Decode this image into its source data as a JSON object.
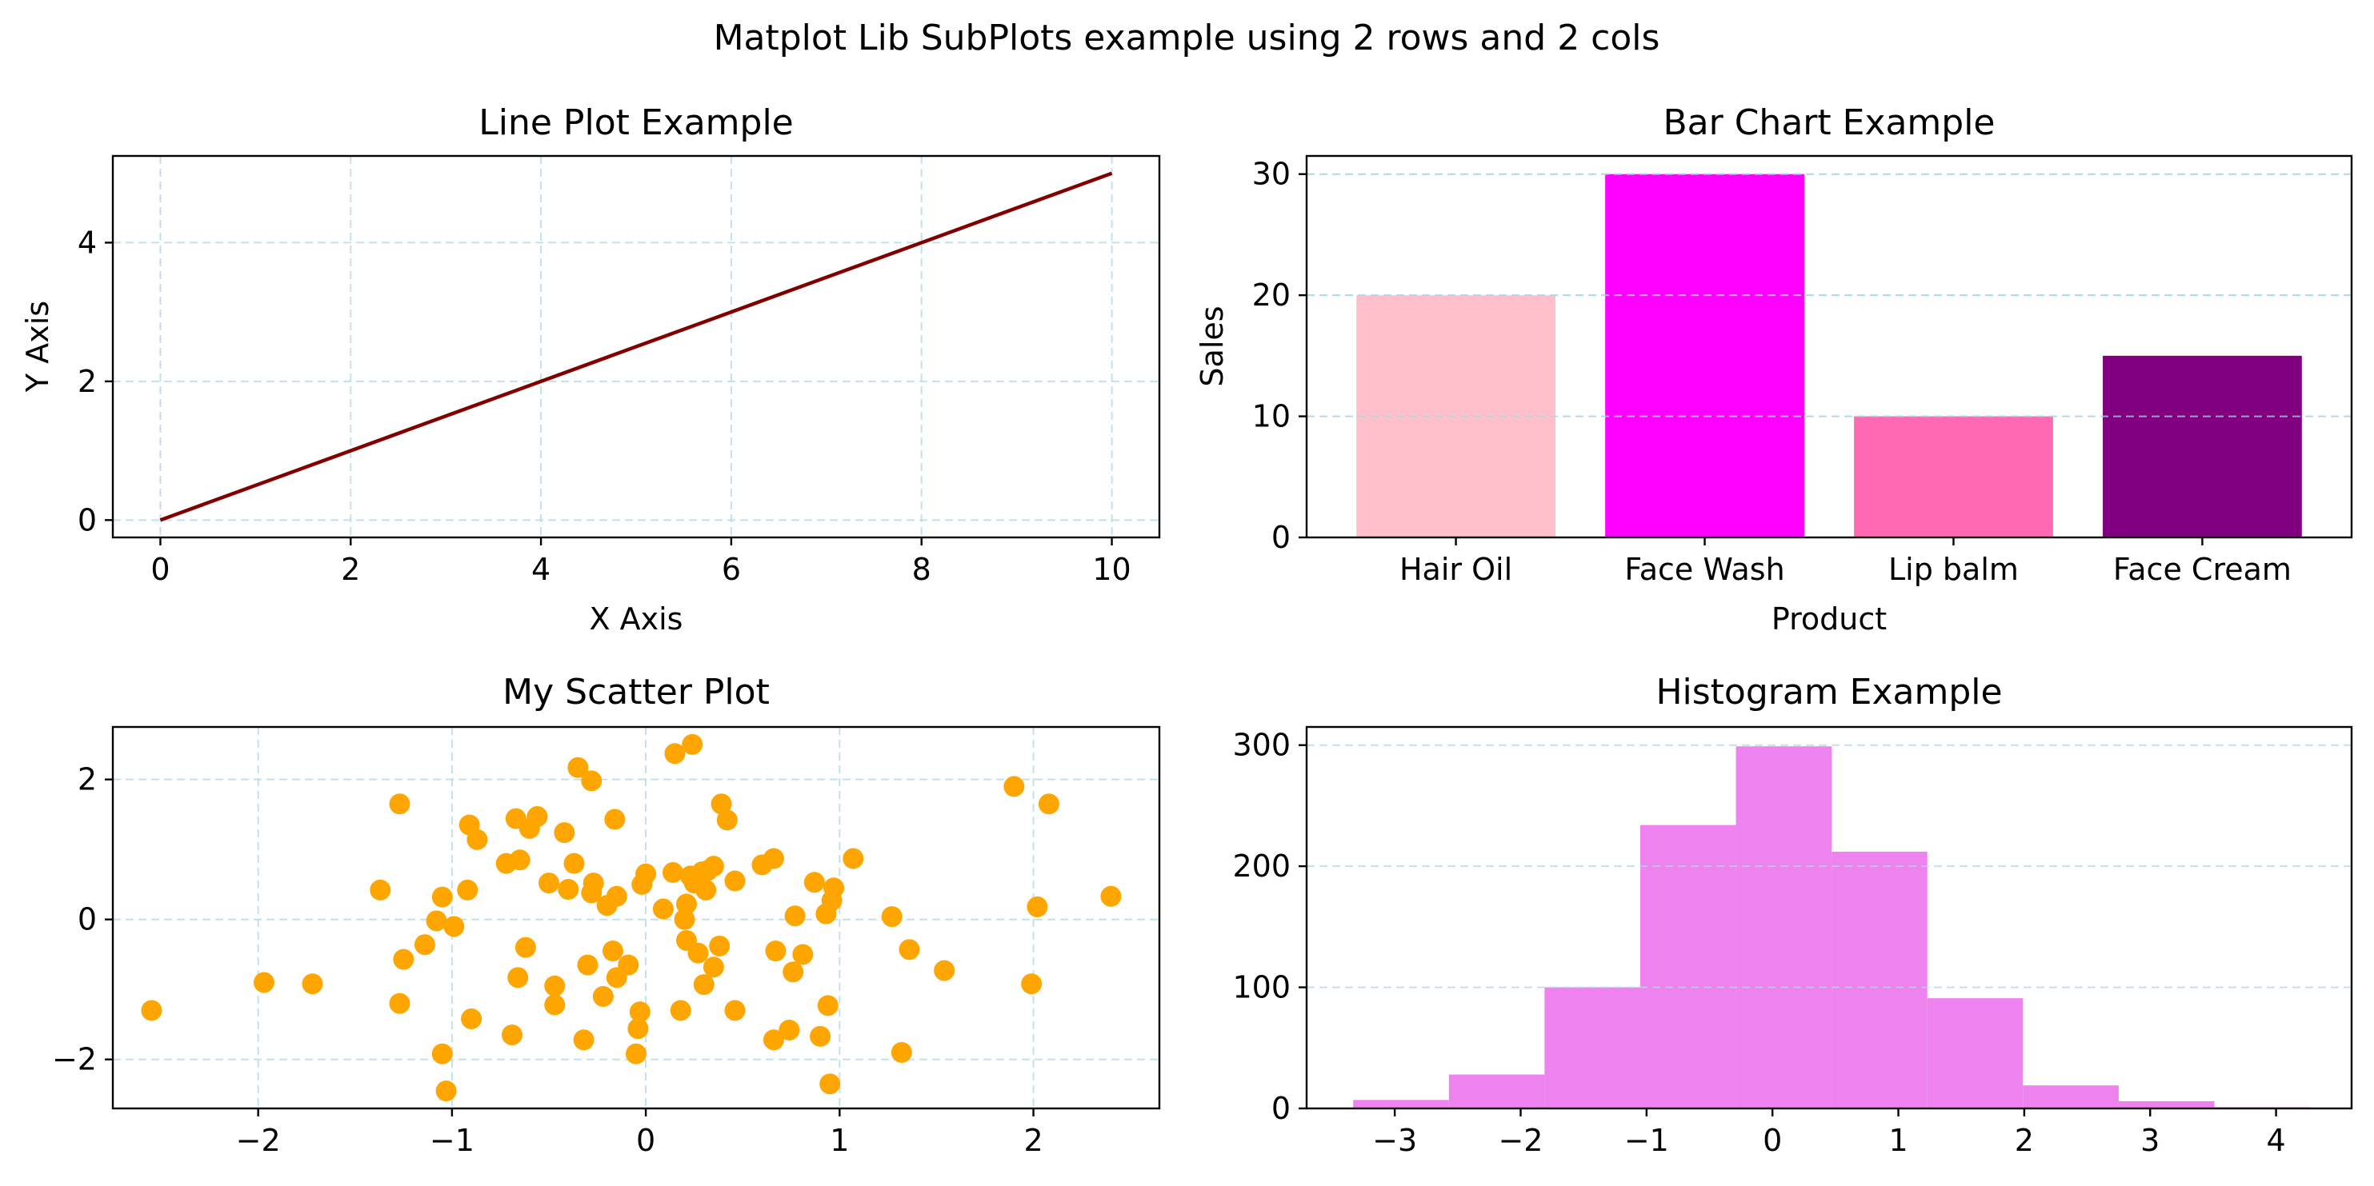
{
  "figure": {
    "suptitle": "Matplot Lib SubPlots example using 2 rows and 2 cols"
  },
  "colors": {
    "line": "#800000",
    "grid": "#add8e6",
    "scatter": "#ffa500",
    "hist": "#ee82ee",
    "bars": [
      "#ffc0cb",
      "#ff00ff",
      "#ff69b4",
      "#800080"
    ]
  },
  "chart_data": [
    {
      "type": "line",
      "title": "Line Plot Example",
      "xlabel": "X Axis",
      "ylabel": "Y Axis",
      "x": [
        0,
        10
      ],
      "y": [
        0,
        5
      ],
      "xlim": [
        -0.5,
        10.5
      ],
      "ylim": [
        -0.25,
        5.25
      ],
      "xticks": [
        0,
        2,
        4,
        6,
        8,
        10
      ],
      "yticks": [
        0,
        2,
        4
      ],
      "grid": true
    },
    {
      "type": "bar",
      "title": "Bar Chart Example",
      "xlabel": "Product",
      "ylabel": "Sales",
      "categories": [
        "Hair Oil",
        "Face Wash",
        "Lip balm",
        "Face Cream"
      ],
      "values": [
        20,
        30,
        10,
        15
      ],
      "ylim": [
        0,
        31.5
      ],
      "yticks": [
        0,
        10,
        20,
        30
      ],
      "grid": true
    },
    {
      "type": "scatter",
      "title": "My Scatter Plot",
      "xlabel": "",
      "ylabel": "",
      "xlim": [
        -2.75,
        2.65
      ],
      "ylim": [
        -2.7,
        2.75
      ],
      "xticks": [
        -2,
        -1,
        0,
        1,
        2
      ],
      "yticks": [
        -2,
        0,
        2
      ],
      "grid": true,
      "points": [
        [
          -2.55,
          -1.3
        ],
        [
          -1.97,
          -0.9
        ],
        [
          -1.72,
          -0.92
        ],
        [
          -1.37,
          0.42
        ],
        [
          -1.27,
          1.65
        ],
        [
          -1.27,
          -1.2
        ],
        [
          -1.25,
          -0.57
        ],
        [
          -1.14,
          -0.36
        ],
        [
          -1.08,
          -0.02
        ],
        [
          -1.05,
          0.32
        ],
        [
          -1.05,
          -1.92
        ],
        [
          -1.03,
          -2.45
        ],
        [
          -0.99,
          -0.1
        ],
        [
          -0.92,
          0.42
        ],
        [
          -0.91,
          1.35
        ],
        [
          -0.9,
          -1.42
        ],
        [
          -0.87,
          1.14
        ],
        [
          -0.72,
          0.8
        ],
        [
          -0.69,
          -1.65
        ],
        [
          -0.67,
          1.44
        ],
        [
          -0.66,
          -0.83
        ],
        [
          -0.65,
          0.85
        ],
        [
          -0.62,
          -0.4
        ],
        [
          -0.6,
          1.3
        ],
        [
          -0.56,
          1.47
        ],
        [
          -0.5,
          0.52
        ],
        [
          -0.47,
          -0.95
        ],
        [
          -0.47,
          -1.22
        ],
        [
          -0.42,
          1.24
        ],
        [
          -0.4,
          0.43
        ],
        [
          -0.37,
          0.8
        ],
        [
          -0.35,
          2.17
        ],
        [
          -0.32,
          -1.72
        ],
        [
          -0.3,
          -0.65
        ],
        [
          -0.28,
          1.98
        ],
        [
          -0.28,
          0.38
        ],
        [
          -0.27,
          0.52
        ],
        [
          -0.22,
          -1.1
        ],
        [
          -0.2,
          0.2
        ],
        [
          -0.17,
          -0.45
        ],
        [
          -0.16,
          1.43
        ],
        [
          -0.15,
          -0.83
        ],
        [
          -0.15,
          0.33
        ],
        [
          -0.09,
          -0.65
        ],
        [
          -0.05,
          -1.92
        ],
        [
          -0.04,
          -1.56
        ],
        [
          -0.03,
          -1.32
        ],
        [
          -0.02,
          0.5
        ],
        [
          0.0,
          0.65
        ],
        [
          0.09,
          0.15
        ],
        [
          0.14,
          0.67
        ],
        [
          0.15,
          2.37
        ],
        [
          0.18,
          -1.3
        ],
        [
          0.2,
          0.0
        ],
        [
          0.21,
          0.22
        ],
        [
          0.21,
          -0.3
        ],
        [
          0.23,
          0.62
        ],
        [
          0.24,
          2.5
        ],
        [
          0.25,
          0.52
        ],
        [
          0.27,
          -0.48
        ],
        [
          0.29,
          0.68
        ],
        [
          0.3,
          -0.93
        ],
        [
          0.31,
          0.42
        ],
        [
          0.32,
          0.7
        ],
        [
          0.35,
          0.76
        ],
        [
          0.35,
          -0.68
        ],
        [
          0.38,
          -0.38
        ],
        [
          0.39,
          1.65
        ],
        [
          0.42,
          1.42
        ],
        [
          0.46,
          0.55
        ],
        [
          0.46,
          -1.3
        ],
        [
          0.6,
          0.78
        ],
        [
          0.66,
          0.87
        ],
        [
          0.66,
          -1.72
        ],
        [
          0.67,
          -0.45
        ],
        [
          0.74,
          -1.58
        ],
        [
          0.76,
          -0.75
        ],
        [
          0.77,
          0.05
        ],
        [
          0.81,
          -0.5
        ],
        [
          0.87,
          0.53
        ],
        [
          0.9,
          -1.67
        ],
        [
          0.93,
          0.08
        ],
        [
          0.94,
          -1.23
        ],
        [
          0.95,
          -2.35
        ],
        [
          0.96,
          0.27
        ],
        [
          0.97,
          0.45
        ],
        [
          1.07,
          0.87
        ],
        [
          1.27,
          0.04
        ],
        [
          1.32,
          -1.9
        ],
        [
          1.36,
          -0.43
        ],
        [
          1.54,
          -0.73
        ],
        [
          1.9,
          1.9
        ],
        [
          1.99,
          -0.92
        ],
        [
          2.02,
          0.18
        ],
        [
          2.08,
          1.65
        ],
        [
          2.4,
          0.33
        ]
      ]
    },
    {
      "type": "bar",
      "title": "Histogram Example",
      "xlabel": "",
      "ylabel": "",
      "bin_edges": [
        -3.33,
        -2.57,
        -1.81,
        -1.05,
        -0.29,
        0.47,
        1.23,
        1.99,
        2.75,
        3.51,
        4.27
      ],
      "counts": [
        7,
        28,
        100,
        234,
        299,
        212,
        91,
        19,
        6,
        1
      ],
      "xlim": [
        -3.7,
        4.6
      ],
      "ylim": [
        0,
        315
      ],
      "xticks": [
        -3,
        -2,
        -1,
        0,
        1,
        2,
        3,
        4
      ],
      "yticks": [
        0,
        100,
        200,
        300
      ],
      "grid": true
    }
  ]
}
